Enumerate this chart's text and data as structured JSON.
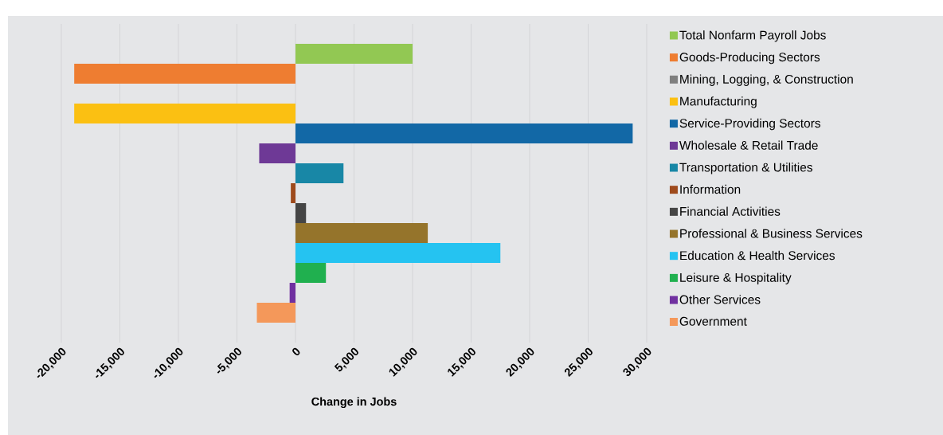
{
  "chart_data": {
    "type": "bar",
    "orientation": "horizontal",
    "xlabel": "Change in Jobs",
    "categories": [
      null
    ],
    "series": [
      {
        "name": "Total Nonfarm Payroll Jobs",
        "color": "#92c853",
        "values": [
          10000
        ]
      },
      {
        "name": "Goods-Producing Sectors",
        "color": "#ee7d31",
        "values": [
          -18900
        ]
      },
      {
        "name": "Mining, Logging, & Construction",
        "color": "#7f7f7f",
        "values": [
          0
        ]
      },
      {
        "name": "Manufacturing",
        "color": "#fbc012",
        "values": [
          -18900
        ]
      },
      {
        "name": "Service-Providing Sectors",
        "color": "#1268a6",
        "values": [
          28800
        ]
      },
      {
        "name": "Wholesale & Retail Trade",
        "color": "#6e3996",
        "values": [
          -3100
        ]
      },
      {
        "name": "Transportation & Utilities",
        "color": "#1887a6",
        "values": [
          4100
        ]
      },
      {
        "name": "Information",
        "color": "#9e4a1c",
        "values": [
          -400
        ]
      },
      {
        "name": "Financial Activities",
        "color": "#454545",
        "values": [
          900
        ]
      },
      {
        "name": "Professional & Business Services",
        "color": "#95742b",
        "values": [
          11300
        ]
      },
      {
        "name": "Education & Health Services",
        "color": "#25c3f1",
        "values": [
          17500
        ]
      },
      {
        "name": "Leisure & Hospitality",
        "color": "#20b04f",
        "values": [
          2600
        ]
      },
      {
        "name": "Other Services",
        "color": "#7030a0",
        "values": [
          -500
        ]
      },
      {
        "name": "Government",
        "color": "#f4985a",
        "values": [
          -3300
        ]
      }
    ],
    "xlim": [
      -20000,
      30000
    ],
    "xticks": [
      {
        "value": -20000,
        "label": "-20,000"
      },
      {
        "value": -15000,
        "label": "-15,000"
      },
      {
        "value": -10000,
        "label": "-10,000"
      },
      {
        "value": -5000,
        "label": "-5,000"
      },
      0,
      {
        "value": 5000,
        "label": "5,000"
      },
      {
        "value": 10000,
        "label": "10,000"
      },
      {
        "value": 15000,
        "label": "15,000"
      },
      {
        "value": 20000,
        "label": "20,000"
      },
      {
        "value": 25000,
        "label": "25,000"
      },
      {
        "value": 30000,
        "label": "30,000"
      }
    ],
    "grid": "x",
    "legend": "right"
  }
}
